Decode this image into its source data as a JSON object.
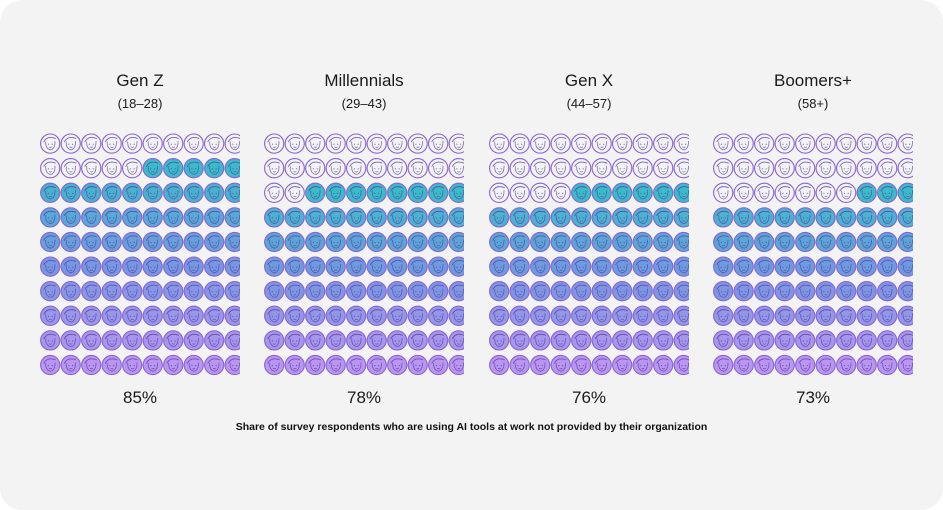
{
  "caption": "Share of survey respondents who are using AI tools at work not provided by their organization",
  "colors": {
    "outline": "#8a63d2",
    "face_stroke": "#5a3fa8",
    "teal": "#2ab7c4",
    "blue": "#6b8fe0",
    "violet": "#b48ef0",
    "background": "#f3f3f3"
  },
  "chart_data": {
    "type": "waffle",
    "grid": {
      "rows": 10,
      "cols": 10
    },
    "unit": "percent",
    "series": [
      {
        "name": "Gen Z",
        "range": "(18–28)",
        "value": 85,
        "label": "85%"
      },
      {
        "name": "Millennials",
        "range": "(29–43)",
        "value": 78,
        "label": "78%"
      },
      {
        "name": "Gen X",
        "range": "(44–57)",
        "value": 76,
        "label": "76%"
      },
      {
        "name": "Boomers+",
        "range": "(58+)",
        "value": 73,
        "label": "73%"
      }
    ]
  }
}
